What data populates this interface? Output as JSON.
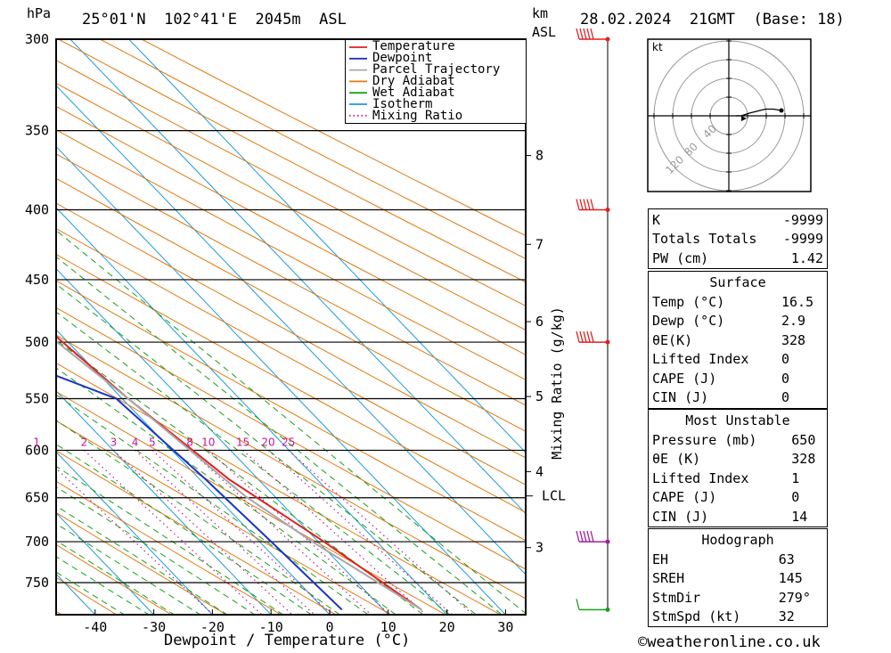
{
  "header": {
    "hpa_label": "hPa",
    "location": "25°01'N  102°41'E  2045m  ASL",
    "km_label": "km",
    "asl_label": "ASL",
    "datetime": "28.02.2024  21GMT  (Base: 18)"
  },
  "chart_data": {
    "type": "line",
    "xlabel": "Dewpoint / Temperature (°C)",
    "ylabel": "hPa",
    "x_ticks": [
      -40,
      -30,
      -20,
      -10,
      0,
      10,
      20,
      30
    ],
    "pressure_levels": [
      300,
      350,
      400,
      450,
      500,
      550,
      600,
      650,
      700,
      750
    ],
    "km_ticks": [
      {
        "label": "8",
        "p": 365
      },
      {
        "label": "7",
        "p": 424
      },
      {
        "label": "6",
        "p": 483
      },
      {
        "label": "5",
        "p": 548
      },
      {
        "label": "4",
        "p": 622
      },
      {
        "label": "3",
        "p": 707
      }
    ],
    "lcl": {
      "label": "LCL",
      "p": 648
    },
    "mixing_ratio_axis_label": "Mixing Ratio (g/kg)",
    "mixing_ratio_values": [
      1,
      2,
      3,
      4,
      5,
      8,
      10,
      15,
      20,
      25
    ],
    "mixing_ratio_labels": [
      "1",
      "2",
      "3",
      "4",
      "5",
      "8",
      "10",
      "15",
      "20",
      "25"
    ],
    "series": [
      {
        "name": "Temperature",
        "color": "#e02020",
        "points": [
          [
            16.5,
            785
          ],
          [
            11,
            700
          ],
          [
            5,
            630
          ],
          [
            1,
            550
          ],
          [
            -3,
            450
          ],
          [
            -10,
            400
          ],
          [
            -20,
            350
          ],
          [
            -36,
            300
          ]
        ]
      },
      {
        "name": "Dewpoint",
        "color": "#1a33c8",
        "points": [
          [
            2.9,
            785
          ],
          [
            2,
            700
          ],
          [
            1,
            630
          ],
          [
            -1,
            550
          ],
          [
            -17,
            500
          ],
          [
            -30,
            450
          ],
          [
            -14,
            400
          ],
          [
            -20,
            350
          ],
          [
            -53,
            300
          ]
        ]
      },
      {
        "name": "Parcel Trajectory",
        "color": "#a8a8a8",
        "points": [
          [
            16.5,
            785
          ],
          [
            9,
            700
          ],
          [
            5,
            648
          ],
          [
            1,
            550
          ],
          [
            -5,
            450
          ],
          [
            -14,
            400
          ],
          [
            -20,
            350
          ],
          [
            -38,
            300
          ]
        ]
      }
    ],
    "background_lines": [
      {
        "name": "Dry Adiabat",
        "color": "#e07a10"
      },
      {
        "name": "Wet Adiabat",
        "color": "#1aa01a"
      },
      {
        "name": "Isotherm",
        "color": "#1a9ad8"
      },
      {
        "name": "Mixing Ratio",
        "color": "#c01898"
      }
    ],
    "legend_placement": "top-right",
    "wind_barbs": [
      {
        "p": 300,
        "color": "#e02020"
      },
      {
        "p": 400,
        "color": "#e02020"
      },
      {
        "p": 500,
        "color": "#e02020"
      },
      {
        "p": 700,
        "color": "#a020a0"
      },
      {
        "p": 785,
        "color": "#1aa01a"
      }
    ]
  },
  "hodograph": {
    "unit_label": "kt",
    "ring_labels": [
      "40",
      "80",
      "120"
    ],
    "trace": [
      [
        0,
        0
      ],
      [
        4,
        0
      ],
      [
        10,
        2
      ],
      [
        22,
        5
      ],
      [
        28,
        5
      ],
      [
        34,
        4
      ]
    ]
  },
  "indices": {
    "rows": [
      {
        "label": "K",
        "value": "-9999"
      },
      {
        "label": "Totals Totals",
        "value": "-9999"
      },
      {
        "label": "PW (cm)",
        "value": "1.42"
      }
    ]
  },
  "surface": {
    "title": "Surface",
    "rows": [
      {
        "label": "Temp (°C)",
        "value": "16.5"
      },
      {
        "label": "Dewp (°C)",
        "value": "2.9"
      },
      {
        "label": "θE(K)",
        "value": "328"
      },
      {
        "label": "Lifted Index",
        "value": "0"
      },
      {
        "label": "CAPE (J)",
        "value": "0"
      },
      {
        "label": "CIN (J)",
        "value": "0"
      }
    ]
  },
  "most_unstable": {
    "title": "Most Unstable",
    "rows": [
      {
        "label": "Pressure (mb)",
        "value": "650"
      },
      {
        "label": "θE (K)",
        "value": "328"
      },
      {
        "label": "Lifted Index",
        "value": "1"
      },
      {
        "label": "CAPE (J)",
        "value": "0"
      },
      {
        "label": "CIN (J)",
        "value": "14"
      }
    ]
  },
  "hodograph_box": {
    "title": "Hodograph",
    "rows": [
      {
        "label": "EH",
        "value": "63"
      },
      {
        "label": "SREH",
        "value": "145"
      },
      {
        "label": "StmDir",
        "value": "279°"
      },
      {
        "label": "StmSpd (kt)",
        "value": "32"
      }
    ]
  },
  "footer": {
    "copyright": "©weatheronline.co.uk"
  }
}
